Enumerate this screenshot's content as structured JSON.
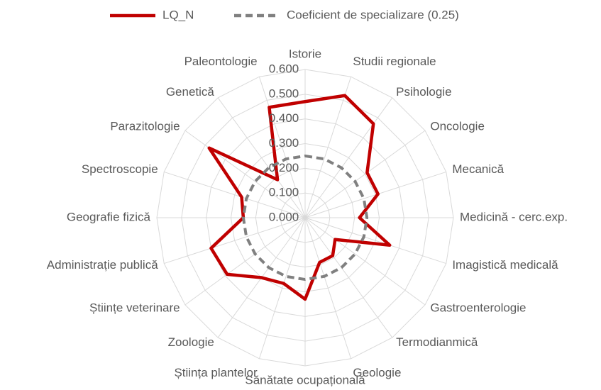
{
  "chart_data": {
    "type": "radar",
    "categories": [
      "Istorie",
      "Studii regionale",
      "Psihologie",
      "Oncologie",
      "Mecanică",
      "Medicină - cerc.exp.",
      "Imagistică medicală",
      "Gastroenterologie",
      "Termodianmică",
      "Geologie",
      "Sănătate ocupațională",
      "Știința plantelor",
      "Zoologie",
      "Științe veterinare",
      "Administrație publică",
      "Geografie fizică",
      "Spectroscopie",
      "Parazitologie",
      "Genetică",
      "Paleontologie"
    ],
    "series": [
      {
        "name": "LQ_N",
        "color": "#c00000",
        "values": [
          0.47,
          0.52,
          0.47,
          0.31,
          0.31,
          0.22,
          0.36,
          0.15,
          0.19,
          0.19,
          0.33,
          0.28,
          0.3,
          0.39,
          0.4,
          0.25,
          0.27,
          0.48,
          0.19,
          0.47
        ]
      },
      {
        "name": "Coeficient de specializare (0.25)",
        "color": "#808080",
        "dashed": true,
        "values": [
          0.25,
          0.25,
          0.25,
          0.25,
          0.25,
          0.25,
          0.25,
          0.25,
          0.25,
          0.25,
          0.25,
          0.25,
          0.25,
          0.25,
          0.25,
          0.25,
          0.25,
          0.25,
          0.25,
          0.25
        ]
      }
    ],
    "ylim": [
      0,
      0.6
    ],
    "yticks": [
      {
        "value": 0,
        "label": "0.000"
      },
      {
        "value": 0.1,
        "label": "0.100"
      },
      {
        "value": 0.2,
        "label": "0.200"
      },
      {
        "value": 0.3,
        "label": "0.300"
      },
      {
        "value": 0.4,
        "label": "0.400"
      },
      {
        "value": 0.5,
        "label": "0.500"
      },
      {
        "value": 0.6,
        "label": "0.600"
      }
    ],
    "grid": true,
    "legend": "top"
  }
}
